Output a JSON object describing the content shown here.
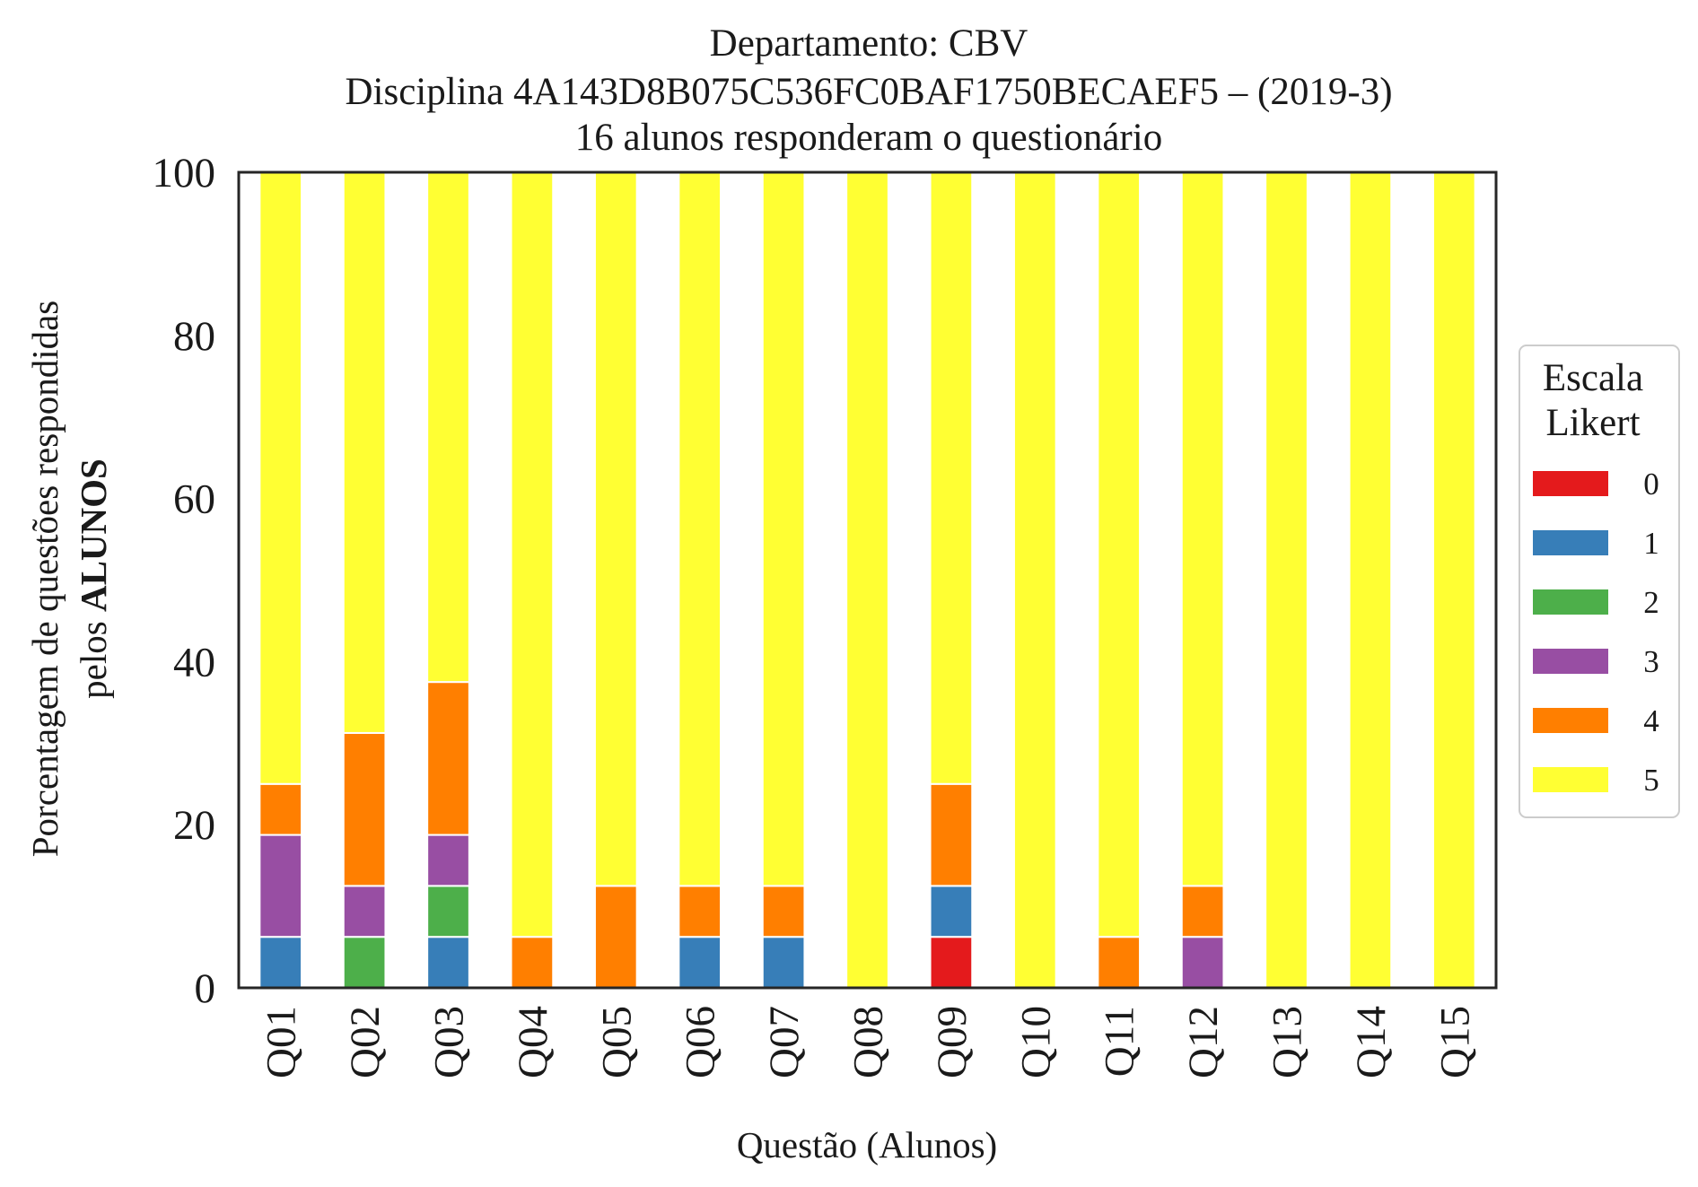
{
  "chart_data": {
    "type": "bar",
    "stacked": true,
    "title_lines": [
      "Departamento: CBV",
      "Disciplina 4A143D8B075C536FC0BAF1750BECAEF5 – (2019-3)",
      "16 alunos responderam o questionário"
    ],
    "xlabel": "Questão (Alunos)",
    "ylabel_line1": "Porcentagem de questões respondidas",
    "ylabel_line2_prefix": "pelos ",
    "ylabel_line2_bold": "ALUNOS",
    "ylim": [
      0,
      100
    ],
    "yticks": [
      0,
      20,
      40,
      60,
      80,
      100
    ],
    "grid": false,
    "legend_position": "right",
    "legend_title_lines": [
      "Escala",
      "Likert"
    ],
    "categories": [
      "Q01",
      "Q02",
      "Q03",
      "Q04",
      "Q05",
      "Q06",
      "Q07",
      "Q08",
      "Q09",
      "Q10",
      "Q11",
      "Q12",
      "Q13",
      "Q14",
      "Q15"
    ],
    "series": [
      {
        "name": "0",
        "color": "#e41a1c",
        "values": [
          0,
          0,
          0,
          0,
          0,
          0,
          0,
          0,
          6.25,
          0,
          0,
          0,
          0,
          0,
          0
        ]
      },
      {
        "name": "1",
        "color": "#377eb8",
        "values": [
          6.25,
          0,
          6.25,
          0,
          0,
          6.25,
          6.25,
          0,
          6.25,
          0,
          0,
          0,
          0,
          0,
          0
        ]
      },
      {
        "name": "2",
        "color": "#4daf4a",
        "values": [
          0,
          6.25,
          6.25,
          0,
          0,
          0,
          0,
          0,
          0,
          0,
          0,
          0,
          0,
          0,
          0
        ]
      },
      {
        "name": "3",
        "color": "#984ea3",
        "values": [
          12.5,
          6.25,
          6.25,
          0,
          0,
          0,
          0,
          0,
          0,
          0,
          0,
          6.25,
          0,
          0,
          0
        ]
      },
      {
        "name": "4",
        "color": "#ff7f00",
        "values": [
          6.25,
          18.75,
          18.75,
          6.25,
          12.5,
          6.25,
          6.25,
          0,
          12.5,
          0,
          6.25,
          6.25,
          0,
          0,
          0
        ]
      },
      {
        "name": "5",
        "color": "#ffff33",
        "values": [
          75,
          68.75,
          62.5,
          93.75,
          87.5,
          87.5,
          87.5,
          100,
          75,
          100,
          93.75,
          87.5,
          100,
          100,
          100
        ]
      }
    ]
  }
}
